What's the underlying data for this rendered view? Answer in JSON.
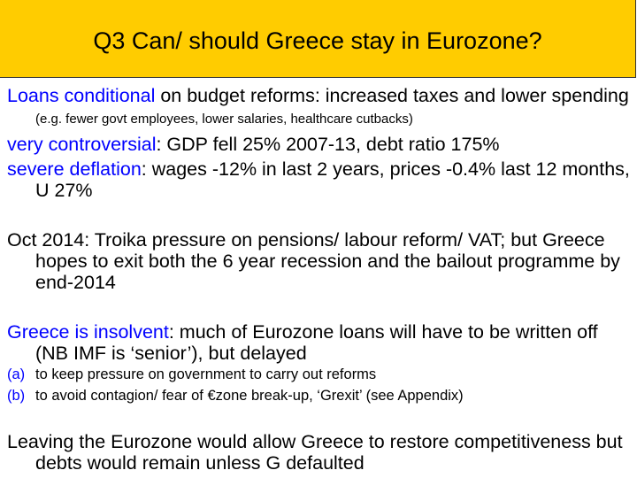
{
  "title": "Q3 Can/ should  Greece stay in Eurozone?",
  "colors": {
    "title_bg": "#FFCC00",
    "highlight": "#0000FF"
  },
  "points": [
    {
      "highlight": "Loans conditional",
      "text": " on budget reforms: increased taxes and lower spending ",
      "small": "(e.g. fewer govt employees, lower salaries, healthcare cutbacks)"
    },
    {
      "highlight": "very controversial",
      "text": ": GDP fell 25% 2007-13, debt ratio 175%"
    },
    {
      "highlight": "severe deflation",
      "text": ": wages -12% in last 2 years, prices -0.4% last 12 months, U 27%"
    },
    {
      "text": "Oct 2014:  Troika pressure on pensions/ labour reform/ VAT; but Greece hopes to exit both the 6 year recession and  the bailout programme by end-2014"
    },
    {
      "highlight": "Greece is insolvent",
      "text": ": much of Eurozone loans will have to be written off (NB IMF is ‘senior’), but delayed"
    },
    {
      "text": "Leaving the Eurozone would allow Greece to restore competitiveness but debts would remain unless G defaulted"
    }
  ],
  "subpoints": [
    {
      "label": "(a)",
      "text": "to keep pressure on government to carry out reforms"
    },
    {
      "label": "(b)",
      "text": "to avoid contagion/ fear of €zone break-up, ‘Grexit’ (see Appendix)"
    }
  ]
}
